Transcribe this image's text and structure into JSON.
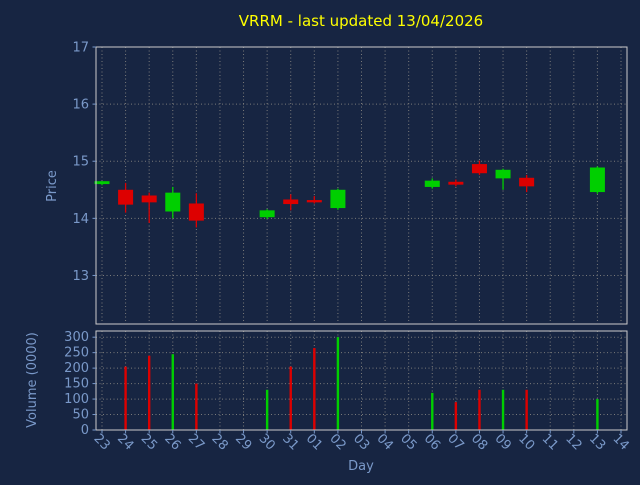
{
  "title": "VRRM - last updated 13/04/2026",
  "colors": {
    "background": "#172542",
    "up": "#00cf00",
    "down": "#dd0000",
    "title": "#ffff00",
    "axis_label": "#7a99c9",
    "tick_label": "#7a99c9",
    "grid": "#7a7a7a",
    "spine": "#cccccc"
  },
  "chart_data": {
    "type": "candlestick",
    "title": "VRRM - last updated 13/04/2026",
    "xlabel": "Day",
    "grid": true,
    "legend": false,
    "price_axis": {
      "label": "Price",
      "ticks": [
        13,
        14,
        15,
        16,
        17
      ],
      "ylim": [
        12.15,
        17.0
      ]
    },
    "volume_axis": {
      "label": "Volume (0000)",
      "ticks": [
        0,
        50,
        100,
        150,
        200,
        250,
        300
      ],
      "ylim": [
        0,
        320
      ]
    },
    "categories": [
      "23",
      "24",
      "25",
      "26",
      "27",
      "28",
      "29",
      "30",
      "31",
      "01",
      "02",
      "03",
      "04",
      "05",
      "06",
      "07",
      "08",
      "09",
      "10",
      "11",
      "12",
      "13",
      "14"
    ],
    "candles": [
      {
        "day": "23",
        "open": 14.6,
        "high": 14.65,
        "low": 14.58,
        "close": 14.65,
        "volume": 0
      },
      {
        "day": "24",
        "open": 14.5,
        "high": 14.62,
        "low": 14.1,
        "close": 14.24,
        "volume": 205
      },
      {
        "day": "25",
        "open": 14.4,
        "high": 14.45,
        "low": 13.92,
        "close": 14.28,
        "volume": 240
      },
      {
        "day": "26",
        "open": 14.12,
        "high": 14.55,
        "low": 14.0,
        "close": 14.45,
        "volume": 245
      },
      {
        "day": "27",
        "open": 14.26,
        "high": 14.44,
        "low": 13.84,
        "close": 13.96,
        "volume": 150
      },
      {
        "day": "30",
        "open": 14.02,
        "high": 14.16,
        "low": 13.99,
        "close": 14.14,
        "volume": 130
      },
      {
        "day": "31",
        "open": 14.33,
        "high": 14.42,
        "low": 14.14,
        "close": 14.25,
        "volume": 205
      },
      {
        "day": "01",
        "open": 14.32,
        "high": 14.39,
        "low": 14.26,
        "close": 14.28,
        "volume": 265
      },
      {
        "day": "02",
        "open": 14.18,
        "high": 14.52,
        "low": 14.15,
        "close": 14.5,
        "volume": 300
      },
      {
        "day": "06",
        "open": 14.55,
        "high": 14.7,
        "low": 14.52,
        "close": 14.66,
        "volume": 120
      },
      {
        "day": "07",
        "open": 14.64,
        "high": 14.68,
        "low": 14.56,
        "close": 14.59,
        "volume": 90
      },
      {
        "day": "08",
        "open": 14.95,
        "high": 15.01,
        "low": 14.76,
        "close": 14.79,
        "volume": 130
      },
      {
        "day": "09",
        "open": 14.7,
        "high": 14.87,
        "low": 14.5,
        "close": 14.85,
        "volume": 130
      },
      {
        "day": "10",
        "open": 14.71,
        "high": 14.76,
        "low": 14.46,
        "close": 14.56,
        "volume": 130
      },
      {
        "day": "13",
        "open": 14.46,
        "high": 14.91,
        "low": 14.43,
        "close": 14.89,
        "volume": 100
      }
    ]
  }
}
